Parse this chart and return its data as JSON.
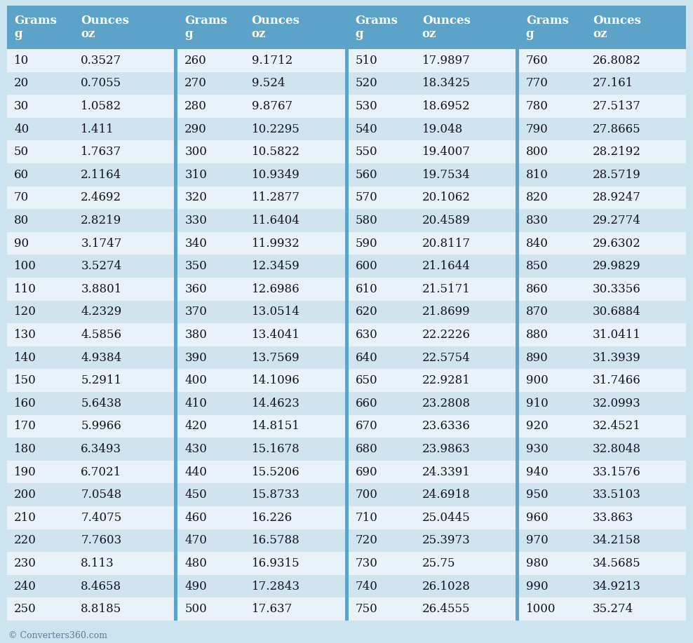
{
  "background_color": "#cce3f0",
  "header_bg": "#5ba3c9",
  "header_text_color": "#ffffff",
  "row_bg_odd": "#e8f2f8",
  "row_bg_even": "#d0e4ef",
  "text_color": "#111122",
  "col_separator_color": "#5ba3c9",
  "footer_text": "© Converters360.com",
  "col1_grams": [
    10,
    20,
    30,
    40,
    50,
    60,
    70,
    80,
    90,
    100,
    110,
    120,
    130,
    140,
    150,
    160,
    170,
    180,
    190,
    200,
    210,
    220,
    230,
    240,
    250
  ],
  "col1_oz": [
    "0.3527",
    "0.7055",
    "1.0582",
    "1.411",
    "1.7637",
    "2.1164",
    "2.4692",
    "2.8219",
    "3.1747",
    "3.5274",
    "3.8801",
    "4.2329",
    "4.5856",
    "4.9384",
    "5.2911",
    "5.6438",
    "5.9966",
    "6.3493",
    "6.7021",
    "7.0548",
    "7.4075",
    "7.7603",
    "8.113",
    "8.4658",
    "8.8185"
  ],
  "col2_grams": [
    260,
    270,
    280,
    290,
    300,
    310,
    320,
    330,
    340,
    350,
    360,
    370,
    380,
    390,
    400,
    410,
    420,
    430,
    440,
    450,
    460,
    470,
    480,
    490,
    500
  ],
  "col2_oz": [
    "9.1712",
    "9.524",
    "9.8767",
    "10.2295",
    "10.5822",
    "10.9349",
    "11.2877",
    "11.6404",
    "11.9932",
    "12.3459",
    "12.6986",
    "13.0514",
    "13.4041",
    "13.7569",
    "14.1096",
    "14.4623",
    "14.8151",
    "15.1678",
    "15.5206",
    "15.8733",
    "16.226",
    "16.5788",
    "16.9315",
    "17.2843",
    "17.637"
  ],
  "col3_grams": [
    510,
    520,
    530,
    540,
    550,
    560,
    570,
    580,
    590,
    600,
    610,
    620,
    630,
    640,
    650,
    660,
    670,
    680,
    690,
    700,
    710,
    720,
    730,
    740,
    750
  ],
  "col3_oz": [
    "17.9897",
    "18.3425",
    "18.6952",
    "19.048",
    "19.4007",
    "19.7534",
    "20.1062",
    "20.4589",
    "20.8117",
    "21.1644",
    "21.5171",
    "21.8699",
    "22.2226",
    "22.5754",
    "22.9281",
    "23.2808",
    "23.6336",
    "23.9863",
    "24.3391",
    "24.6918",
    "25.0445",
    "25.3973",
    "25.75",
    "26.1028",
    "26.4555"
  ],
  "col4_grams": [
    760,
    770,
    780,
    790,
    800,
    810,
    820,
    830,
    840,
    850,
    860,
    870,
    880,
    890,
    900,
    910,
    920,
    930,
    940,
    950,
    960,
    970,
    980,
    990,
    1000
  ],
  "col4_oz": [
    "26.8082",
    "27.161",
    "27.5137",
    "27.8665",
    "28.2192",
    "28.5719",
    "28.9247",
    "29.2774",
    "29.6302",
    "29.9829",
    "30.3356",
    "30.6884",
    "31.0411",
    "31.3939",
    "31.7466",
    "32.0993",
    "32.4521",
    "32.8048",
    "33.1576",
    "33.5103",
    "33.863",
    "34.2158",
    "34.5685",
    "34.9213",
    "35.274"
  ]
}
